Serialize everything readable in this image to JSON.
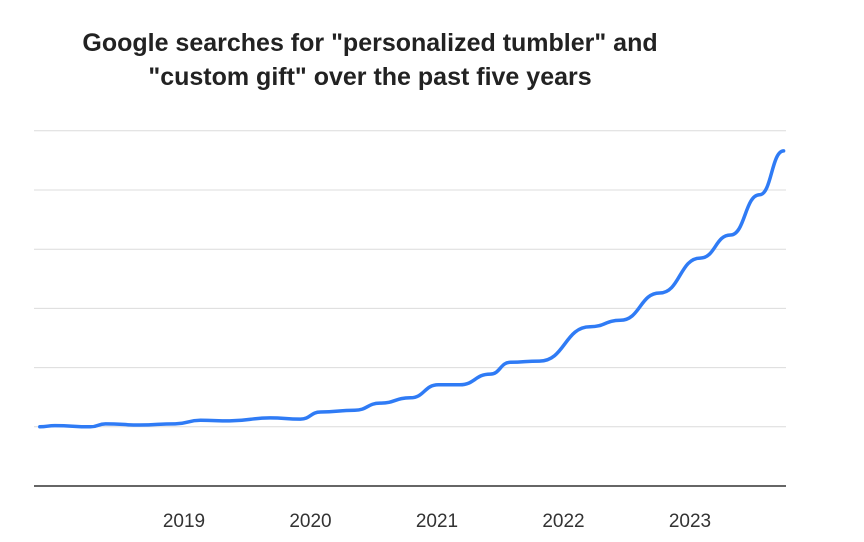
{
  "chart_data": {
    "type": "line",
    "title_lines": [
      "Google searches for \"personalized tumbler\" and",
      "\"custom gift\" over the past five years"
    ],
    "xlabel": "",
    "ylabel": "",
    "xlim": [
      2017.86,
      2023.74
    ],
    "ylim": [
      0,
      6
    ],
    "x_ticks": [
      "2019",
      "2020",
      "2021",
      "2022",
      "2023"
    ],
    "grid": true,
    "legend": "none",
    "line_color": "#2f7bf5",
    "series": [
      {
        "x": [
          2017.86,
          2017.98,
          2018.26,
          2018.38,
          2018.65,
          2018.93,
          2019.13,
          2019.36,
          2019.68,
          2019.92,
          2020.08,
          2020.35,
          2020.55,
          2020.79,
          2021.01,
          2021.18,
          2021.42,
          2021.58,
          2021.81,
          2022.21,
          2022.45,
          2022.76,
          2023.08,
          2023.32,
          2023.55,
          2023.74
        ],
        "y": [
          1.0,
          1.02,
          1.0,
          1.05,
          1.03,
          1.05,
          1.11,
          1.1,
          1.15,
          1.13,
          1.25,
          1.28,
          1.4,
          1.49,
          1.71,
          1.71,
          1.89,
          2.09,
          2.11,
          2.69,
          2.8,
          3.26,
          3.85,
          4.24,
          4.92,
          5.66
        ]
      }
    ]
  }
}
